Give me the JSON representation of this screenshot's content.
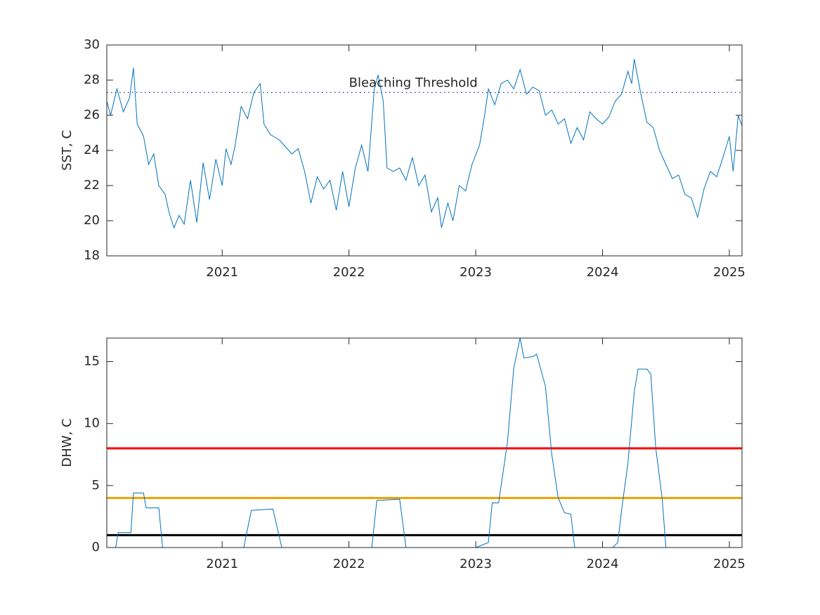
{
  "chart_data": [
    {
      "type": "line",
      "ylabel": "SST, C",
      "color": "#0072bd",
      "x": [
        2020.09,
        2020.12,
        2020.17,
        2020.22,
        2020.27,
        2020.3,
        2020.33,
        2020.38,
        2020.42,
        2020.46,
        2020.5,
        2020.55,
        2020.58,
        2020.62,
        2020.66,
        2020.7,
        2020.75,
        2020.8,
        2020.85,
        2020.9,
        2020.95,
        2021.0,
        2021.03,
        2021.07,
        2021.1,
        2021.15,
        2021.2,
        2021.25,
        2021.3,
        2021.33,
        2021.38,
        2021.45,
        2021.5,
        2021.55,
        2021.6,
        2021.65,
        2021.7,
        2021.75,
        2021.8,
        2021.85,
        2021.9,
        2021.95,
        2022.0,
        2022.05,
        2022.1,
        2022.15,
        2022.2,
        2022.23,
        2022.27,
        2022.3,
        2022.35,
        2022.4,
        2022.45,
        2022.5,
        2022.55,
        2022.6,
        2022.65,
        2022.7,
        2022.73,
        2022.78,
        2022.82,
        2022.87,
        2022.92,
        2022.97,
        2023.03,
        2023.07,
        2023.1,
        2023.15,
        2023.2,
        2023.25,
        2023.3,
        2023.35,
        2023.4,
        2023.45,
        2023.5,
        2023.55,
        2023.6,
        2023.65,
        2023.7,
        2023.75,
        2023.8,
        2023.85,
        2023.9,
        2023.95,
        2024.0,
        2024.05,
        2024.1,
        2024.15,
        2024.2,
        2024.23,
        2024.25,
        2024.3,
        2024.35,
        2024.4,
        2024.45,
        2024.5,
        2024.55,
        2024.6,
        2024.65,
        2024.7,
        2024.75,
        2024.8,
        2024.85,
        2024.9,
        2024.95,
        2025.0,
        2025.03,
        2025.07,
        2025.1
      ],
      "values": [
        26.8,
        26.0,
        27.5,
        26.2,
        27.0,
        28.7,
        25.5,
        24.8,
        23.2,
        23.8,
        22.0,
        21.5,
        20.5,
        19.6,
        20.3,
        19.8,
        22.3,
        19.9,
        23.3,
        21.2,
        23.5,
        22.0,
        24.1,
        23.2,
        24.2,
        26.5,
        25.8,
        27.3,
        27.8,
        25.5,
        24.9,
        24.6,
        24.2,
        23.8,
        24.1,
        22.8,
        21.0,
        22.5,
        21.8,
        22.3,
        20.6,
        22.8,
        20.8,
        23.0,
        24.3,
        22.8,
        27.5,
        28.3,
        26.8,
        23.0,
        22.8,
        23.0,
        22.3,
        23.6,
        22.0,
        22.6,
        20.5,
        21.3,
        19.6,
        21.0,
        20.0,
        22.0,
        21.7,
        23.2,
        24.3,
        26.0,
        27.5,
        26.6,
        27.8,
        28.0,
        27.5,
        28.6,
        27.2,
        27.6,
        27.4,
        26.0,
        26.3,
        25.5,
        25.8,
        24.4,
        25.3,
        24.6,
        26.2,
        25.8,
        25.5,
        25.9,
        26.8,
        27.2,
        28.5,
        27.8,
        29.2,
        27.3,
        25.6,
        25.3,
        24.0,
        23.2,
        22.4,
        22.6,
        21.5,
        21.3,
        20.2,
        21.8,
        22.8,
        22.5,
        23.6,
        24.8,
        22.8,
        26.0,
        25.4
      ],
      "xlim": [
        2020.09,
        2025.1
      ],
      "xticks": [
        2021,
        2022,
        2023,
        2024,
        2025
      ],
      "ylim": [
        18,
        30
      ],
      "yticks": [
        18,
        20,
        22,
        24,
        26,
        28,
        30
      ],
      "threshold": {
        "value": 27.3,
        "label": "Bleaching Threshold",
        "color": "#1f2d8a"
      }
    },
    {
      "type": "line",
      "ylabel": "DHW, C",
      "color": "#0072bd",
      "x": [
        2020.09,
        2020.16,
        2020.18,
        2020.28,
        2020.3,
        2020.38,
        2020.4,
        2020.5,
        2020.53,
        2021.17,
        2021.23,
        2021.4,
        2021.47,
        2022.18,
        2022.22,
        2022.4,
        2022.45,
        2023.0,
        2023.1,
        2023.13,
        2023.18,
        2023.25,
        2023.3,
        2023.35,
        2023.38,
        2023.45,
        2023.48,
        2023.55,
        2023.6,
        2023.65,
        2023.7,
        2023.75,
        2023.78,
        2024.08,
        2024.12,
        2024.15,
        2024.2,
        2024.25,
        2024.28,
        2024.35,
        2024.38,
        2024.42,
        2024.47,
        2024.5,
        2025.1
      ],
      "values": [
        0,
        0,
        1.2,
        1.2,
        4.4,
        4.4,
        3.2,
        3.2,
        0,
        0,
        3.0,
        3.1,
        0,
        0,
        3.8,
        3.9,
        0,
        0,
        0.4,
        3.6,
        3.6,
        8.5,
        14.5,
        16.9,
        15.3,
        15.4,
        15.6,
        13,
        7.5,
        4.0,
        2.8,
        2.7,
        0,
        0,
        0.4,
        3.0,
        6.8,
        12.5,
        14.4,
        14.4,
        14.0,
        8.0,
        4.0,
        0,
        0
      ],
      "xlim": [
        2020.09,
        2025.1
      ],
      "xticks": [
        2021,
        2022,
        2023,
        2024,
        2025
      ],
      "ylim": [
        0,
        16.9
      ],
      "yticks": [
        0,
        5,
        10,
        15
      ],
      "reference_lines": [
        {
          "value": 1,
          "color": "#000000"
        },
        {
          "value": 4,
          "color": "#f5a100"
        },
        {
          "value": 8,
          "color": "#ff0000"
        }
      ]
    }
  ]
}
